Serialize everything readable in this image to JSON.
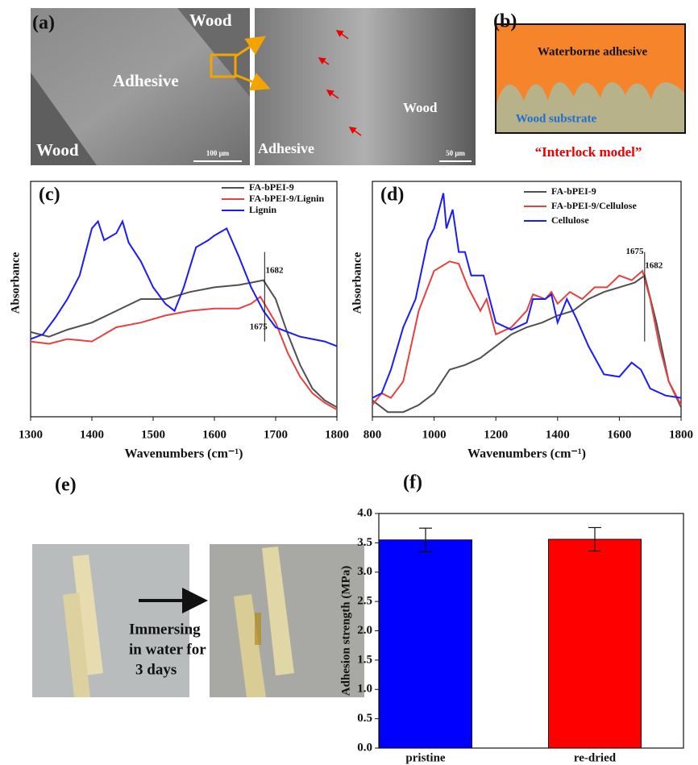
{
  "panel_a": {
    "label": "(a)",
    "texts": [
      "Wood",
      "Adhesive",
      "Wood",
      "100 μm",
      "Adhesive",
      "Wood",
      "50 μm"
    ]
  },
  "panel_b": {
    "label": "(b)",
    "top": "Waterborne adhesive",
    "bottom": "Wood substrate",
    "caption": "“Interlock model”"
  },
  "panel_e": {
    "label": "(e)",
    "caption": [
      "Immersing",
      "in water for",
      "3 days"
    ]
  },
  "chart_data": [
    {
      "type": "line",
      "panel_label": "(c)",
      "x_label": "Wavenumbers (cm⁻¹)",
      "y_label": "Absorbance",
      "xlim": [
        1300,
        1800
      ],
      "xticks": [
        1300,
        1400,
        1500,
        1600,
        1700,
        1800
      ],
      "ylim": [
        0,
        1
      ],
      "vline": 1682,
      "annotations": [
        "1682",
        "1675"
      ],
      "series": [
        {
          "name": "FA-bPEI-9",
          "color": "#505050",
          "x": [
            1300,
            1330,
            1360,
            1400,
            1440,
            1480,
            1520,
            1560,
            1600,
            1640,
            1660,
            1680,
            1700,
            1720,
            1740,
            1760,
            1780,
            1800
          ],
          "y": [
            0.36,
            0.34,
            0.37,
            0.4,
            0.45,
            0.5,
            0.5,
            0.53,
            0.55,
            0.56,
            0.57,
            0.58,
            0.5,
            0.35,
            0.22,
            0.12,
            0.07,
            0.04
          ]
        },
        {
          "name": "FA-bPEI-9/Lignin",
          "color": "#e84040",
          "x": [
            1300,
            1330,
            1360,
            1400,
            1440,
            1480,
            1520,
            1560,
            1600,
            1640,
            1660,
            1675,
            1700,
            1720,
            1740,
            1760,
            1780,
            1800
          ],
          "y": [
            0.32,
            0.31,
            0.33,
            0.32,
            0.38,
            0.4,
            0.43,
            0.45,
            0.46,
            0.46,
            0.48,
            0.51,
            0.4,
            0.27,
            0.17,
            0.1,
            0.06,
            0.03
          ]
        },
        {
          "name": "Lignin",
          "color": "#1a1aff",
          "x": [
            1300,
            1320,
            1340,
            1360,
            1380,
            1400,
            1410,
            1420,
            1440,
            1450,
            1460,
            1480,
            1500,
            1520,
            1535,
            1550,
            1570,
            1590,
            1600,
            1620,
            1640,
            1660,
            1680,
            1700,
            1720,
            1740,
            1760,
            1780,
            1800
          ],
          "y": [
            0.33,
            0.35,
            0.42,
            0.5,
            0.6,
            0.8,
            0.83,
            0.75,
            0.78,
            0.83,
            0.74,
            0.66,
            0.55,
            0.48,
            0.45,
            0.55,
            0.72,
            0.75,
            0.77,
            0.8,
            0.68,
            0.55,
            0.45,
            0.38,
            0.36,
            0.34,
            0.33,
            0.32,
            0.3
          ]
        }
      ]
    },
    {
      "type": "line",
      "panel_label": "(d)",
      "x_label": "Wavenumbers (cm⁻¹)",
      "y_label": "Absorbance",
      "xlim": [
        800,
        1800
      ],
      "xticks": [
        800,
        1000,
        1200,
        1400,
        1600,
        1800
      ],
      "ylim": [
        0,
        1
      ],
      "vline": 1682,
      "annotations": [
        "1675",
        "1682"
      ],
      "series": [
        {
          "name": "FA-bPEI-9",
          "color": "#505050",
          "x": [
            800,
            850,
            900,
            950,
            1000,
            1050,
            1100,
            1150,
            1200,
            1250,
            1300,
            1350,
            1400,
            1450,
            1500,
            1550,
            1600,
            1650,
            1682,
            1720,
            1760,
            1800
          ],
          "y": [
            0.07,
            0.02,
            0.02,
            0.05,
            0.1,
            0.2,
            0.22,
            0.25,
            0.3,
            0.35,
            0.38,
            0.4,
            0.43,
            0.45,
            0.5,
            0.53,
            0.55,
            0.57,
            0.6,
            0.4,
            0.15,
            0.04
          ]
        },
        {
          "name": "FA-bPEI-9/Cellulose",
          "color": "#e84040",
          "x": [
            800,
            830,
            860,
            900,
            950,
            1000,
            1050,
            1080,
            1110,
            1150,
            1170,
            1200,
            1250,
            1300,
            1320,
            1360,
            1380,
            1400,
            1440,
            1480,
            1520,
            1560,
            1600,
            1640,
            1675,
            1700,
            1730,
            1760,
            1800
          ],
          "y": [
            0.05,
            0.1,
            0.08,
            0.15,
            0.45,
            0.62,
            0.66,
            0.65,
            0.55,
            0.45,
            0.5,
            0.35,
            0.38,
            0.45,
            0.52,
            0.5,
            0.53,
            0.48,
            0.53,
            0.5,
            0.55,
            0.55,
            0.6,
            0.58,
            0.62,
            0.5,
            0.3,
            0.15,
            0.05
          ]
        },
        {
          "name": "Cellulose",
          "color": "#1a1aff",
          "x": [
            800,
            830,
            860,
            900,
            940,
            980,
            1000,
            1020,
            1030,
            1040,
            1060,
            1080,
            1100,
            1120,
            1160,
            1180,
            1200,
            1250,
            1300,
            1320,
            1360,
            1380,
            1400,
            1430,
            1460,
            1500,
            1550,
            1600,
            1640,
            1670,
            1700,
            1750,
            1800
          ],
          "y": [
            0.08,
            0.1,
            0.2,
            0.38,
            0.5,
            0.75,
            0.8,
            0.9,
            0.95,
            0.8,
            0.88,
            0.7,
            0.7,
            0.6,
            0.6,
            0.5,
            0.4,
            0.37,
            0.4,
            0.5,
            0.5,
            0.52,
            0.4,
            0.5,
            0.42,
            0.3,
            0.18,
            0.17,
            0.23,
            0.2,
            0.12,
            0.09,
            0.08
          ]
        }
      ]
    },
    {
      "type": "bar",
      "panel_label": "(f)",
      "y_label": "Adhesion strength (MPa)",
      "categories": [
        "pristine",
        "re-dried"
      ],
      "values": [
        3.55,
        3.56
      ],
      "errors": [
        0.2,
        0.2
      ],
      "colors": [
        "#0000ff",
        "#ff0000"
      ],
      "ylim": [
        0,
        4.0
      ],
      "yticks": [
        {
          "value": 0,
          "label": "0.0"
        },
        {
          "value": 0.5,
          "label": "0.5"
        },
        {
          "value": 1,
          "label": "1.0"
        },
        {
          "value": 1.5,
          "label": "1.5"
        },
        {
          "value": 2,
          "label": "2.0"
        },
        {
          "value": 2.5,
          "label": "2.5"
        },
        {
          "value": 3,
          "label": "3.0"
        },
        {
          "value": 3.5,
          "label": "3.5"
        },
        {
          "value": 4,
          "label": "4.0"
        }
      ]
    }
  ]
}
